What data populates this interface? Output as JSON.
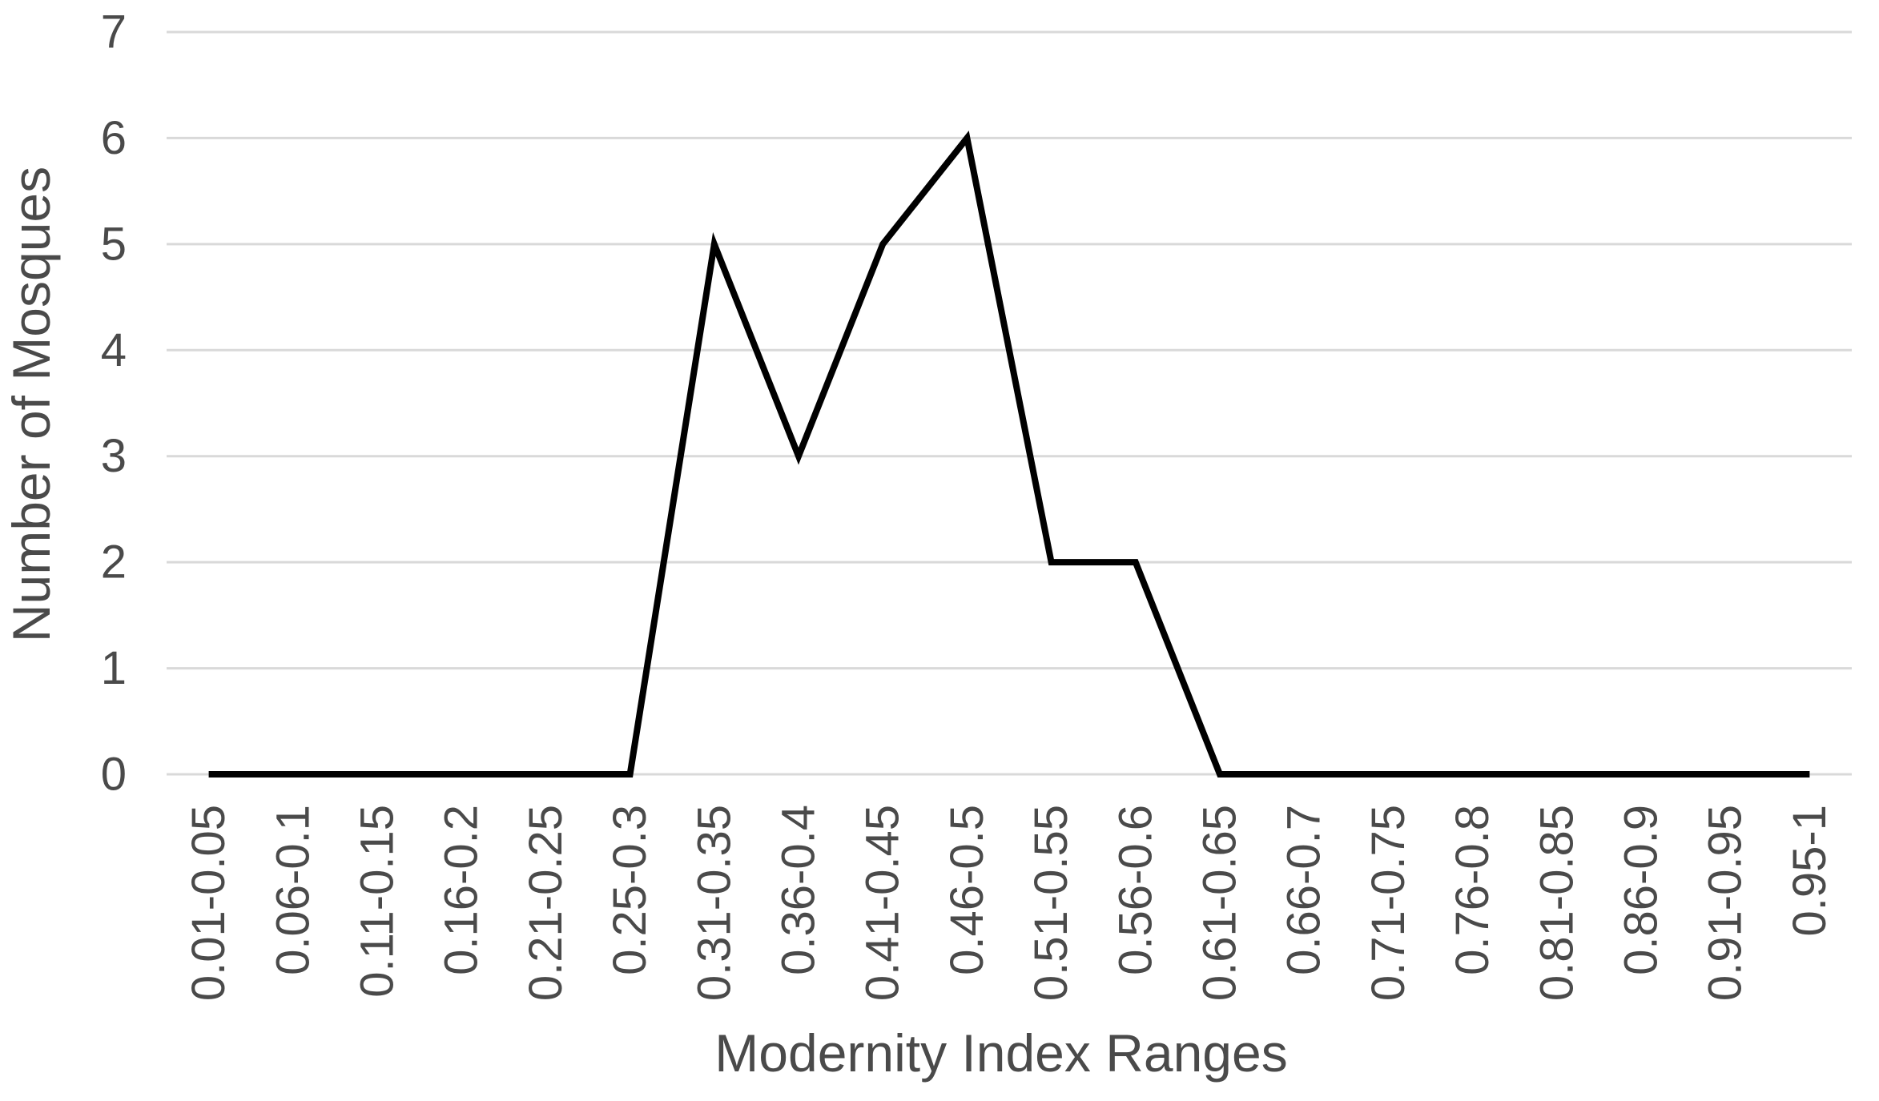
{
  "chart_data": {
    "type": "line",
    "title": "",
    "xlabel": "Modernity Index Ranges",
    "ylabel": "Number of Mosques",
    "categories": [
      "0.01-0.05",
      "0.06-0.1",
      "0.11-0.15",
      "0.16-0.2",
      "0.21-0.25",
      "0.25-0.3",
      "0.31-0.35",
      "0.36-0.4",
      "0.41-0.45",
      "0.46-0.5",
      "0.51-0.55",
      "0.56-0.6",
      "0.61-0.65",
      "0.66-0.7",
      "0.71-0.75",
      "0.76-0.8",
      "0.81-0.85",
      "0.86-0.9",
      "0.91-0.95",
      "0.95-1"
    ],
    "series": [
      {
        "name": "Number of Mosques",
        "values": [
          0,
          0,
          0,
          0,
          0,
          0,
          5,
          3,
          5,
          6,
          2,
          2,
          0,
          0,
          0,
          0,
          0,
          0,
          0,
          0
        ]
      }
    ],
    "ylim": [
      0,
      7
    ],
    "yticks": [
      0,
      1,
      2,
      3,
      4,
      5,
      6,
      7
    ],
    "grid": "horizontal",
    "legend": "none",
    "colors": {
      "series_line": "#000000",
      "gridline": "#d9d9d9",
      "text": "#4a4a4a"
    }
  }
}
